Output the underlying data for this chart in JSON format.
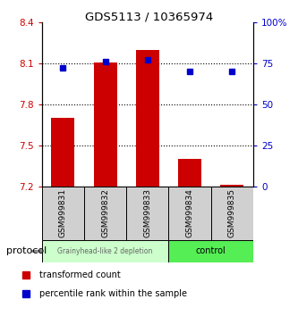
{
  "title": "GDS5113 / 10365974",
  "samples": [
    "GSM999831",
    "GSM999832",
    "GSM999833",
    "GSM999834",
    "GSM999835"
  ],
  "red_values": [
    7.7,
    8.105,
    8.195,
    7.4,
    7.215
  ],
  "blue_values": [
    72,
    76,
    77,
    70,
    70
  ],
  "ymin": 7.2,
  "ymax": 8.4,
  "y_ticks": [
    7.2,
    7.5,
    7.8,
    8.1,
    8.4
  ],
  "y2min": 0,
  "y2max": 100,
  "y2_ticks": [
    0,
    25,
    50,
    75,
    100
  ],
  "bar_color": "#cc0000",
  "dot_color": "#0000cc",
  "group1_label": "Grainyhead-like 2 depletion",
  "group2_label": "control",
  "group1_color": "#ccffcc",
  "group2_color": "#55ee55",
  "group1_indices": [
    0,
    1,
    2
  ],
  "group2_indices": [
    3,
    4
  ],
  "protocol_label": "protocol",
  "legend_red_label": "transformed count",
  "legend_blue_label": "percentile rank within the sample",
  "dotted_line_color": "#000000",
  "bar_base": 7.2,
  "tick_label_color_left": "#cc0000",
  "tick_label_color_right": "#0000cc"
}
